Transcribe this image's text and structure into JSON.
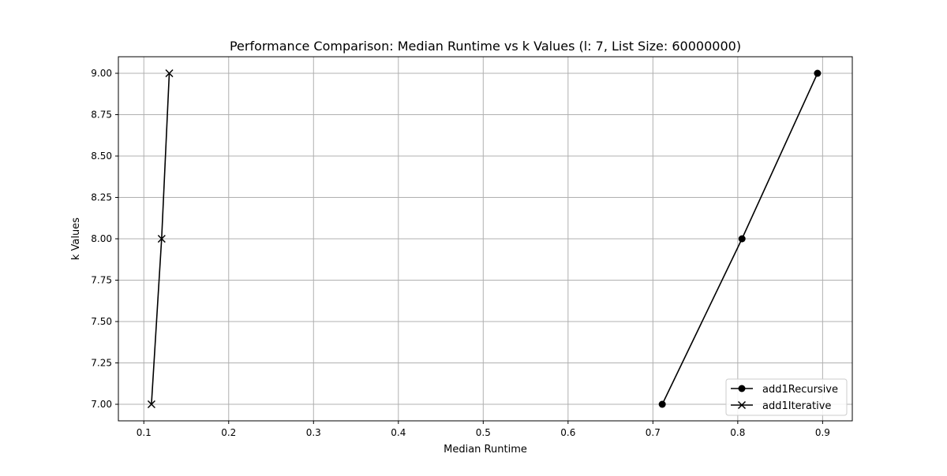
{
  "chart_data": {
    "type": "line",
    "title": "Performance Comparison: Median Runtime vs k Values (l: 7, List Size: 60000000)",
    "xlabel": "Median Runtime",
    "ylabel": "k Values",
    "xlim": [
      0.07,
      0.935
    ],
    "ylim": [
      6.9,
      9.1
    ],
    "x_ticks": [
      0.1,
      0.2,
      0.3,
      0.4,
      0.5,
      0.6,
      0.7,
      0.8,
      0.9
    ],
    "x_tick_labels": [
      "0.1",
      "0.2",
      "0.3",
      "0.4",
      "0.5",
      "0.6",
      "0.7",
      "0.8",
      "0.9"
    ],
    "y_ticks": [
      7.0,
      7.25,
      7.5,
      7.75,
      8.0,
      8.25,
      8.5,
      8.75,
      9.0
    ],
    "y_tick_labels": [
      "7.00",
      "7.25",
      "7.50",
      "7.75",
      "8.00",
      "8.25",
      "8.50",
      "8.75",
      "9.00"
    ],
    "grid": true,
    "legend_position": "bottom-right",
    "series": [
      {
        "name": "add1Recursive",
        "marker": "circle",
        "color": "#000000",
        "points": [
          {
            "x": 0.711,
            "y": 7.0
          },
          {
            "x": 0.805,
            "y": 8.0
          },
          {
            "x": 0.894,
            "y": 9.0
          }
        ]
      },
      {
        "name": "add1Iterative",
        "marker": "x",
        "color": "#000000",
        "points": [
          {
            "x": 0.109,
            "y": 7.0
          },
          {
            "x": 0.121,
            "y": 8.0
          },
          {
            "x": 0.13,
            "y": 9.0
          }
        ]
      }
    ]
  }
}
